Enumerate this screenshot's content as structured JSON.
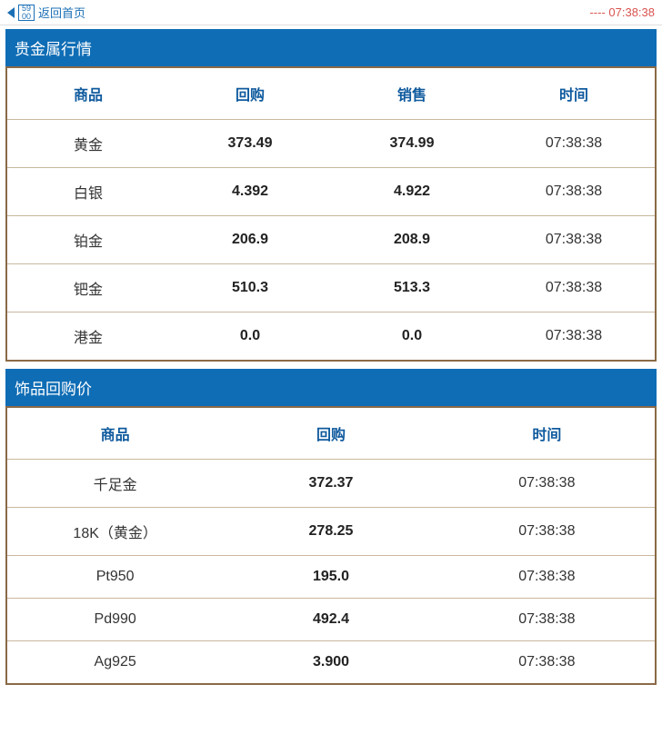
{
  "header": {
    "back_label": "返回首页",
    "time_prefix": "---- ",
    "time": "07:38:38"
  },
  "colors": {
    "section_bg": "#0f6db5",
    "section_text": "#ffffff",
    "border": "#8a6a47",
    "row_divider": "#c9b89d",
    "th_text": "#0f5a9e",
    "link_text": "#1a6fb5",
    "time_text": "#d9534f"
  },
  "section1": {
    "title": "贵金属行情",
    "columns": [
      "商品",
      "回购",
      "销售",
      "时间"
    ],
    "rows": [
      {
        "product": "黄金",
        "buyback": "373.49",
        "sell": "374.99",
        "time": "07:38:38"
      },
      {
        "product": "白银",
        "buyback": "4.392",
        "sell": "4.922",
        "time": "07:38:38"
      },
      {
        "product": "铂金",
        "buyback": "206.9",
        "sell": "208.9",
        "time": "07:38:38"
      },
      {
        "product": "钯金",
        "buyback": "510.3",
        "sell": "513.3",
        "time": "07:38:38"
      },
      {
        "product": "港金",
        "buyback": "0.0",
        "sell": "0.0",
        "time": "07:38:38"
      }
    ]
  },
  "section2": {
    "title": "饰品回购价",
    "columns": [
      "商品",
      "回购",
      "时间"
    ],
    "rows": [
      {
        "product": "千足金",
        "buyback": "372.37",
        "time": "07:38:38"
      },
      {
        "product": "18K（黄金）",
        "buyback": "278.25",
        "time": "07:38:38"
      },
      {
        "product": "Pt950",
        "buyback": "195.0",
        "time": "07:38:38"
      },
      {
        "product": "Pd990",
        "buyback": "492.4",
        "time": "07:38:38"
      },
      {
        "product": "Ag925",
        "buyback": "3.900",
        "time": "07:38:38"
      }
    ]
  }
}
